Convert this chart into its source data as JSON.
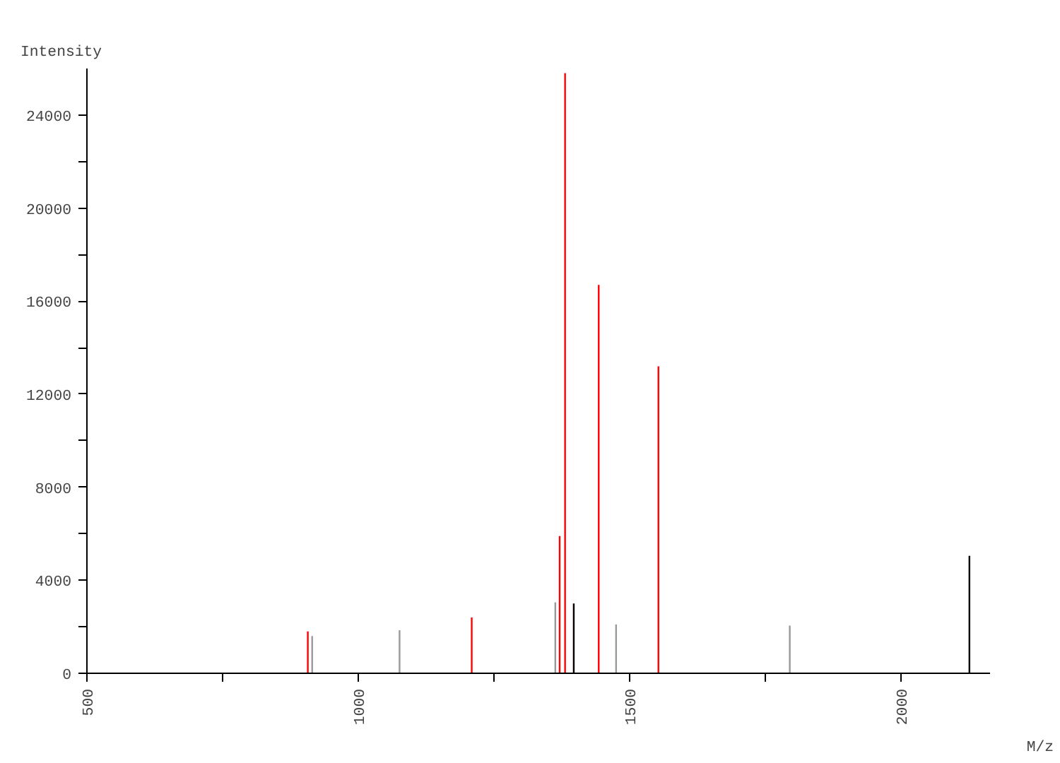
{
  "chart_data": {
    "type": "bar",
    "xlabel": "M/z",
    "ylabel": "Intensity",
    "series": [
      {
        "color": "#ff0000",
        "x": [
          907,
          1209,
          1371,
          1381,
          1443,
          1553
        ],
        "values": [
          1800,
          2400,
          5900,
          25800,
          16700,
          13200
        ]
      },
      {
        "color": "#999999",
        "x": [
          915,
          1076,
          1363,
          1475,
          1795
        ],
        "values": [
          1600,
          1850,
          3050,
          2100,
          2050
        ]
      },
      {
        "color": "#000000",
        "x": [
          1397,
          2126
        ],
        "values": [
          3000,
          5050
        ]
      }
    ],
    "xlim": [
      500,
      2164
    ],
    "ylim": [
      0,
      26000
    ],
    "xticks": [
      500,
      {
        "value": 750,
        "label": null
      },
      1000,
      {
        "value": 1250,
        "label": null
      },
      1500,
      {
        "value": 1750,
        "label": null
      },
      2000
    ],
    "yticks": [
      0,
      {
        "value": 2000,
        "label": null
      },
      4000,
      {
        "value": 6000,
        "label": null
      },
      8000,
      {
        "value": 10000,
        "label": null
      },
      12000,
      {
        "value": 14000,
        "label": null
      },
      16000,
      {
        "value": 18000,
        "label": null
      },
      20000,
      {
        "value": 22000,
        "label": null
      },
      24000
    ],
    "grid": false
  }
}
